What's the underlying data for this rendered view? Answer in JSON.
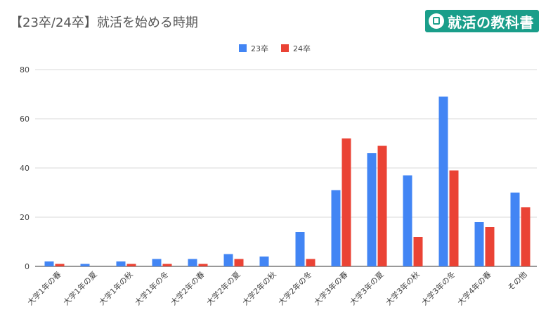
{
  "title": "【23卒/24卒】就活を始める時期",
  "brand": {
    "text": "就活の教科書",
    "icon": "book-icon"
  },
  "colors": {
    "series_23": "#4285f4",
    "series_24": "#ea4335",
    "grid": "#d9d9d9",
    "axis": "#333333",
    "text": "#444444"
  },
  "chart_data": {
    "type": "bar",
    "title": "【23卒/24卒】就活を始める時期",
    "xlabel": "",
    "ylabel": "",
    "ylim": [
      0,
      80
    ],
    "yticks": [
      0,
      20,
      40,
      60,
      80
    ],
    "grid": true,
    "legend_position": "top",
    "categories": [
      "大学1年の春",
      "大学1年の夏",
      "大学1年の秋",
      "大学1年の冬",
      "大学2年の春",
      "大学2年の夏",
      "大学2年の秋",
      "大学2年の冬",
      "大学3年の春",
      "大学3年の夏",
      "大学3年の秋",
      "大学3年の冬",
      "大学4年の春",
      "その他"
    ],
    "series": [
      {
        "name": "23卒",
        "color": "#4285f4",
        "values": [
          2,
          1,
          2,
          3,
          3,
          5,
          4,
          14,
          31,
          46,
          37,
          69,
          18,
          30
        ]
      },
      {
        "name": "24卒",
        "color": "#ea4335",
        "values": [
          1,
          0,
          1,
          1,
          1,
          3,
          0,
          3,
          52,
          49,
          12,
          39,
          16,
          24
        ]
      }
    ]
  }
}
